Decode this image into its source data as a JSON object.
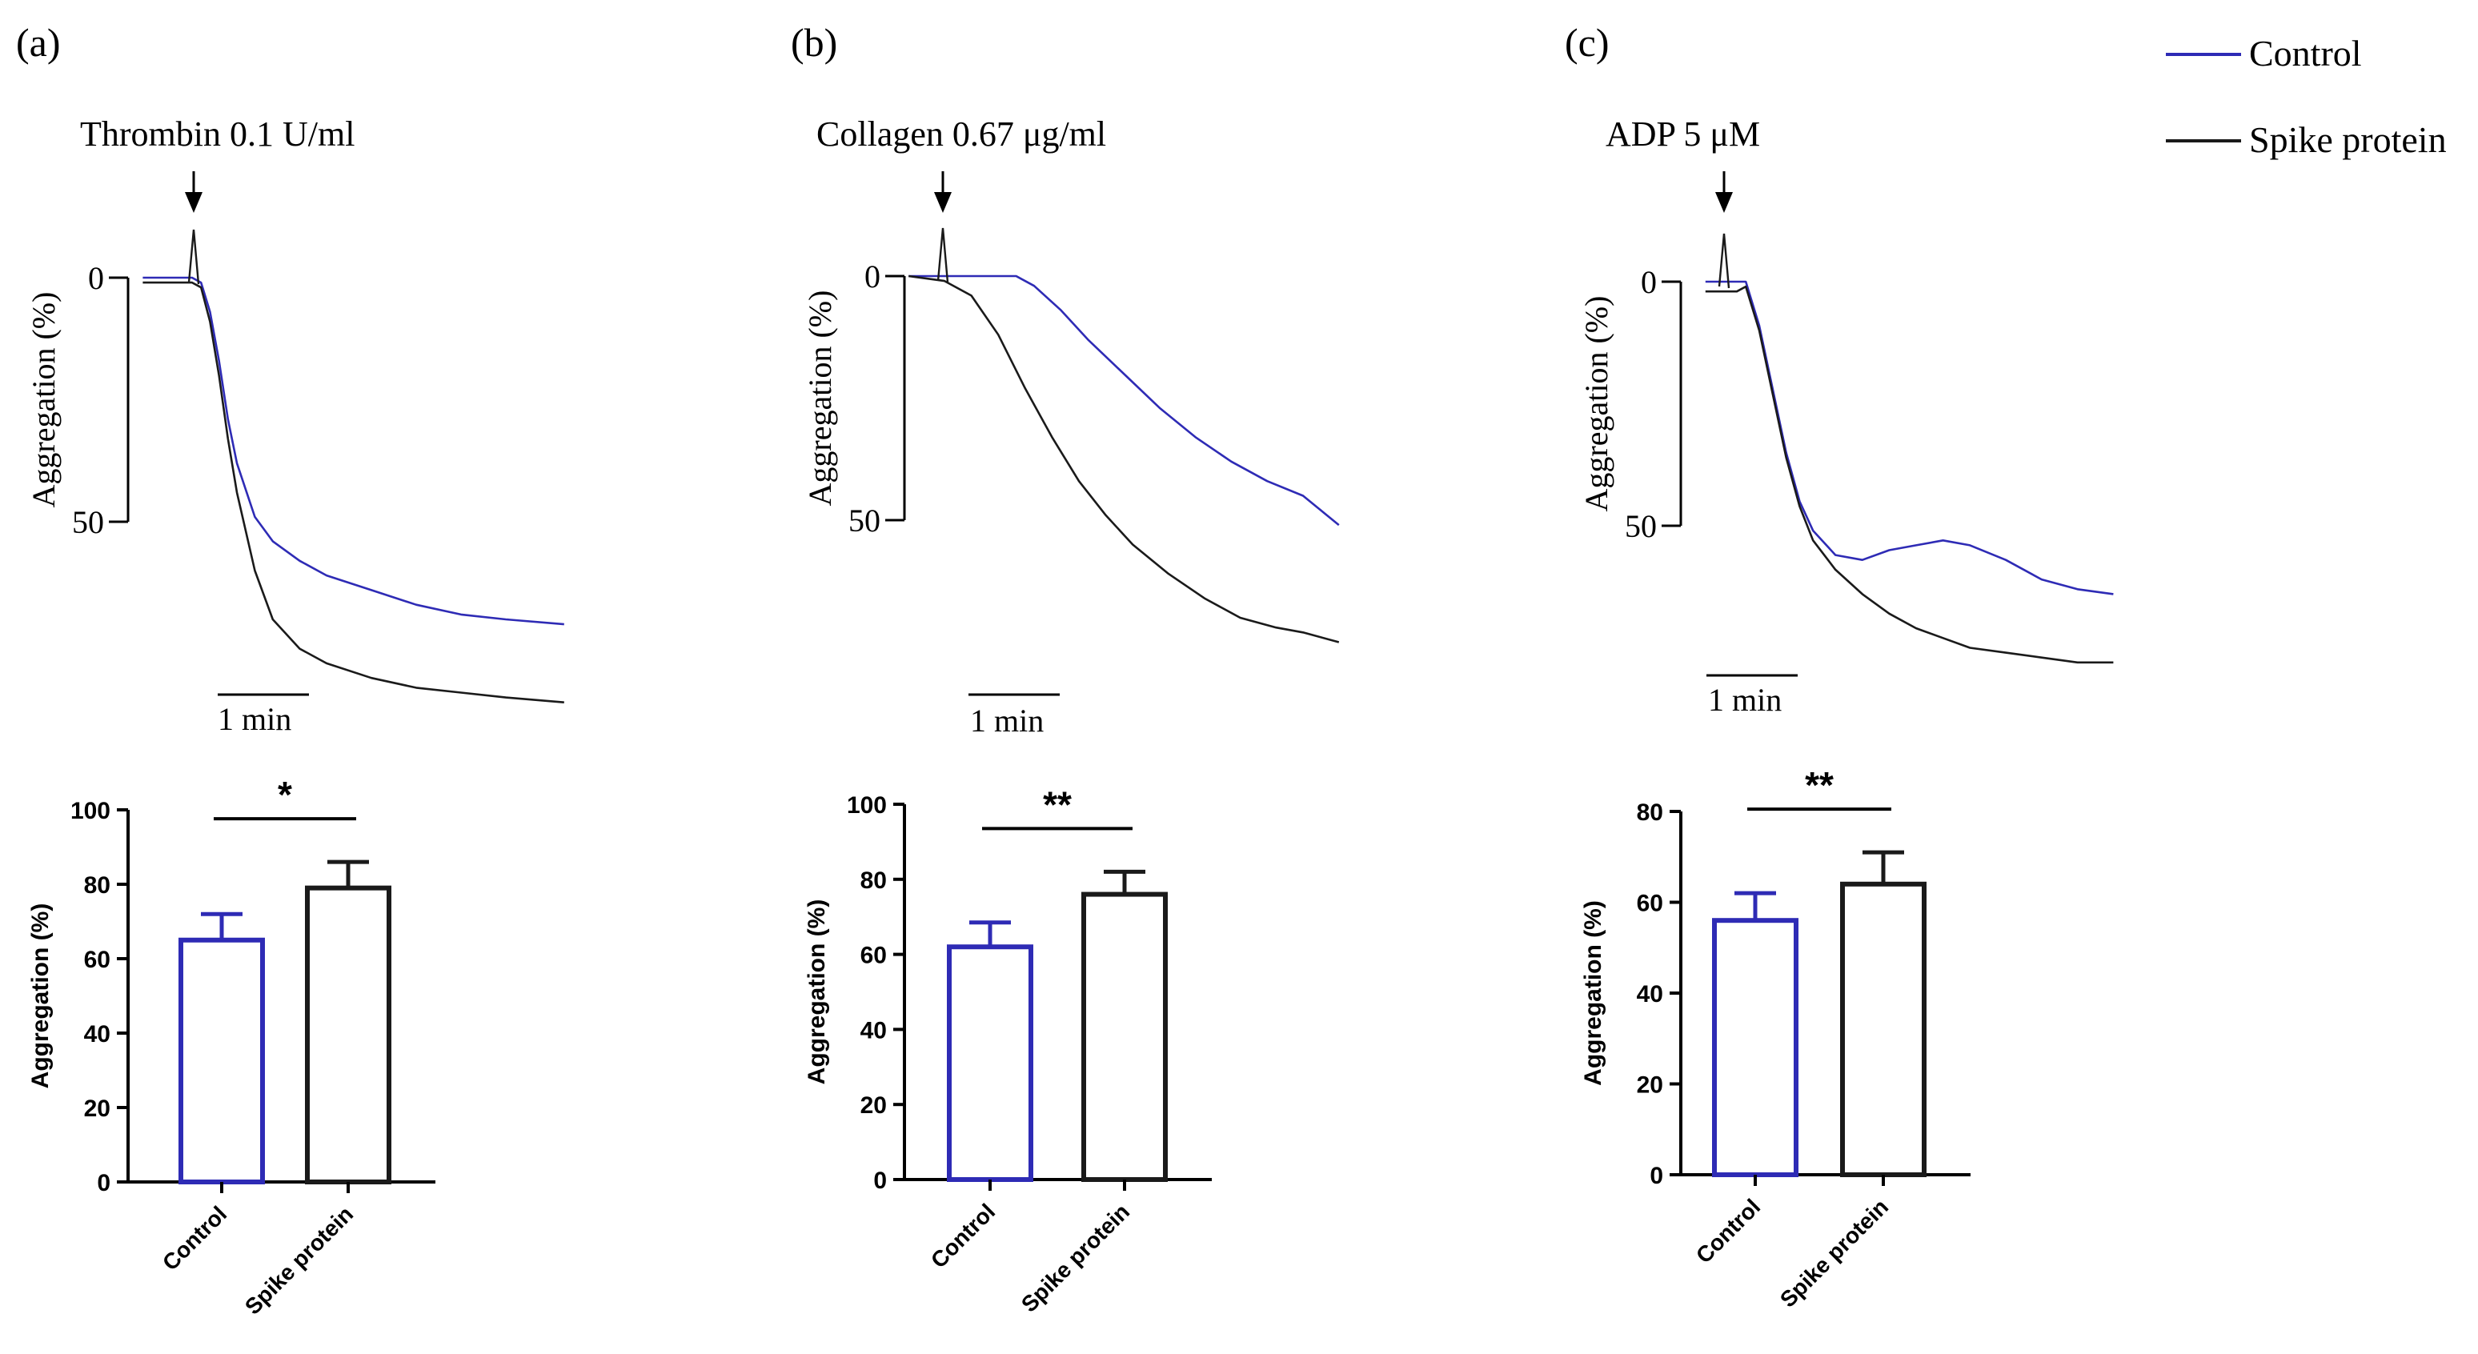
{
  "colors": {
    "control": "#2e2bb5",
    "spike": "#1a1a1a",
    "axis": "#000000"
  },
  "legend": {
    "placement": "top-right",
    "entries": [
      "Control",
      "Spike protein"
    ]
  },
  "chart_data": [
    {
      "panel": "(a)",
      "type": "line",
      "agonist": "Thrombin 0.1 U/ml",
      "ylabel": "Aggregation (%)",
      "y_ticks": [
        "0",
        "50"
      ],
      "ylim": [
        -10,
        90
      ],
      "scale_bar": "1 min",
      "x_units": "min",
      "xlim": [
        -0.55,
        4.15
      ],
      "series": [
        {
          "name": "Control",
          "x": [
            -0.55,
            0,
            0.1,
            0.2,
            0.3,
            0.4,
            0.5,
            0.7,
            0.9,
            1.2,
            1.5,
            2.0,
            2.5,
            3.0,
            3.5,
            4.15
          ],
          "y": [
            0,
            0,
            1,
            7,
            17,
            29,
            38,
            49,
            54,
            58,
            61,
            64,
            67,
            69,
            70,
            71
          ]
        },
        {
          "name": "Spike protein",
          "x": [
            -0.55,
            0,
            0.1,
            0.2,
            0.3,
            0.4,
            0.5,
            0.7,
            0.9,
            1.2,
            1.5,
            2.0,
            2.5,
            3.0,
            3.5,
            4.15
          ],
          "y": [
            1,
            1,
            2,
            9,
            20,
            33,
            44,
            60,
            70,
            76,
            79,
            82,
            84,
            85,
            86,
            87
          ]
        }
      ]
    },
    {
      "panel": "(b)",
      "type": "line",
      "agonist": "Collagen 0.67 μg/ml",
      "ylabel": "Aggregation (%)",
      "y_ticks": [
        "0",
        "50"
      ],
      "ylim": [
        -10,
        80
      ],
      "scale_bar": "1 min",
      "x_units": "min",
      "xlim": [
        -0.4,
        4.4
      ],
      "series": [
        {
          "name": "Control",
          "x": [
            -0.4,
            0,
            0.5,
            0.8,
            1.0,
            1.3,
            1.6,
            2.0,
            2.4,
            2.8,
            3.2,
            3.6,
            4.0,
            4.4
          ],
          "y": [
            0,
            0,
            0,
            0,
            2,
            7,
            13,
            20,
            27,
            33,
            38,
            42,
            45,
            51
          ]
        },
        {
          "name": "Spike protein",
          "x": [
            -0.4,
            0,
            0.3,
            0.6,
            0.9,
            1.2,
            1.5,
            1.8,
            2.1,
            2.5,
            2.9,
            3.3,
            3.7,
            4.0,
            4.4
          ],
          "y": [
            0,
            1,
            4,
            12,
            23,
            33,
            42,
            49,
            55,
            61,
            66,
            70,
            72,
            73,
            75
          ]
        }
      ]
    },
    {
      "panel": "(c)",
      "type": "line",
      "agonist": "ADP 5 μM",
      "ylabel": "Aggregation (%)",
      "y_ticks": [
        "0",
        "50"
      ],
      "ylim": [
        -10,
        90
      ],
      "scale_bar": "1 min",
      "x_units": "min",
      "xlim": [
        -0.35,
        4.2
      ],
      "series": [
        {
          "name": "Control",
          "x": [
            -0.35,
            0,
            0.1,
            0.25,
            0.4,
            0.55,
            0.7,
            0.85,
            1.1,
            1.4,
            1.7,
            2.0,
            2.3,
            2.6,
            3.0,
            3.4,
            3.8,
            4.2
          ],
          "y": [
            0,
            0,
            0,
            9,
            22,
            35,
            45,
            51,
            56,
            57,
            55,
            54,
            53,
            54,
            57,
            61,
            63,
            64
          ]
        },
        {
          "name": "Spike protein",
          "x": [
            -0.35,
            0,
            0.1,
            0.25,
            0.4,
            0.55,
            0.7,
            0.85,
            1.1,
            1.4,
            1.7,
            2.0,
            2.3,
            2.6,
            3.0,
            3.4,
            3.8,
            4.2
          ],
          "y": [
            2,
            2,
            1,
            10,
            23,
            36,
            46,
            53,
            59,
            64,
            68,
            71,
            73,
            75,
            76,
            77,
            78,
            78
          ]
        }
      ]
    },
    {
      "panel": "(a)",
      "type": "bar",
      "categories": [
        "Control",
        "Spike protein"
      ],
      "values": [
        65,
        79
      ],
      "errors": [
        7,
        7
      ],
      "ylabel": "Aggregation (%)",
      "ylim": [
        0,
        100
      ],
      "y_ticks": [
        "0",
        "20",
        "40",
        "60",
        "80",
        "100"
      ],
      "significance": "*"
    },
    {
      "panel": "(b)",
      "type": "bar",
      "categories": [
        "Control",
        "Spike protein"
      ],
      "values": [
        62,
        76
      ],
      "errors": [
        6.5,
        6
      ],
      "ylabel": "Aggregation (%)",
      "ylim": [
        0,
        100
      ],
      "y_ticks": [
        "0",
        "20",
        "40",
        "60",
        "80",
        "100"
      ],
      "significance": "**"
    },
    {
      "panel": "(c)",
      "type": "bar",
      "categories": [
        "Control",
        "Spike protein"
      ],
      "values": [
        56,
        64
      ],
      "errors": [
        6,
        7
      ],
      "ylabel": "Aggregation (%)",
      "ylim": [
        0,
        80
      ],
      "y_ticks": [
        "0",
        "20",
        "40",
        "60",
        "80"
      ],
      "significance": "**"
    }
  ]
}
